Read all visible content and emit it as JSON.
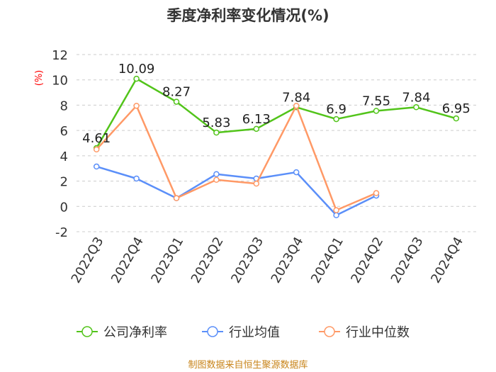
{
  "chart_data": {
    "type": "line",
    "title": "季度净利率变化情况(%)",
    "ylabel": "(%)",
    "xlabel": "",
    "categories": [
      "2022Q3",
      "2022Q4",
      "2023Q1",
      "2023Q2",
      "2023Q3",
      "2023Q4",
      "2024Q1",
      "2024Q2",
      "2024Q3",
      "2024Q4"
    ],
    "yticks": [
      "12",
      "10",
      "8",
      "6",
      "4",
      "2",
      "0",
      "-2"
    ],
    "ylim": [
      -2,
      12
    ],
    "grid": "horizontal dashed",
    "legend_position": "bottom",
    "series": [
      {
        "name": "公司净利率",
        "color": "#52c41a",
        "values": [
          4.61,
          10.09,
          8.27,
          5.83,
          6.13,
          7.84,
          6.9,
          7.55,
          7.84,
          6.95
        ],
        "labels": [
          "4.61",
          "10.09",
          "8.27",
          "5.83",
          "6.13",
          "7.84",
          "6.9",
          "7.55",
          "7.84",
          "6.95"
        ]
      },
      {
        "name": "行业均值",
        "color": "#5b8ff9",
        "values": [
          3.15,
          2.2,
          0.65,
          2.55,
          2.2,
          2.7,
          -0.7,
          0.85,
          null,
          null
        ]
      },
      {
        "name": "行业中位数",
        "color": "#ff9966",
        "values": [
          4.5,
          7.95,
          0.65,
          2.1,
          1.8,
          7.95,
          -0.3,
          1.05,
          null,
          null
        ]
      }
    ]
  },
  "colors": {
    "title": "#333333",
    "axis_text": "#333333",
    "ylabel": "#ff0000",
    "grid": "#cccccc",
    "footer": "#c8841a"
  },
  "footer": "制图数据来自恒生聚源数据库"
}
